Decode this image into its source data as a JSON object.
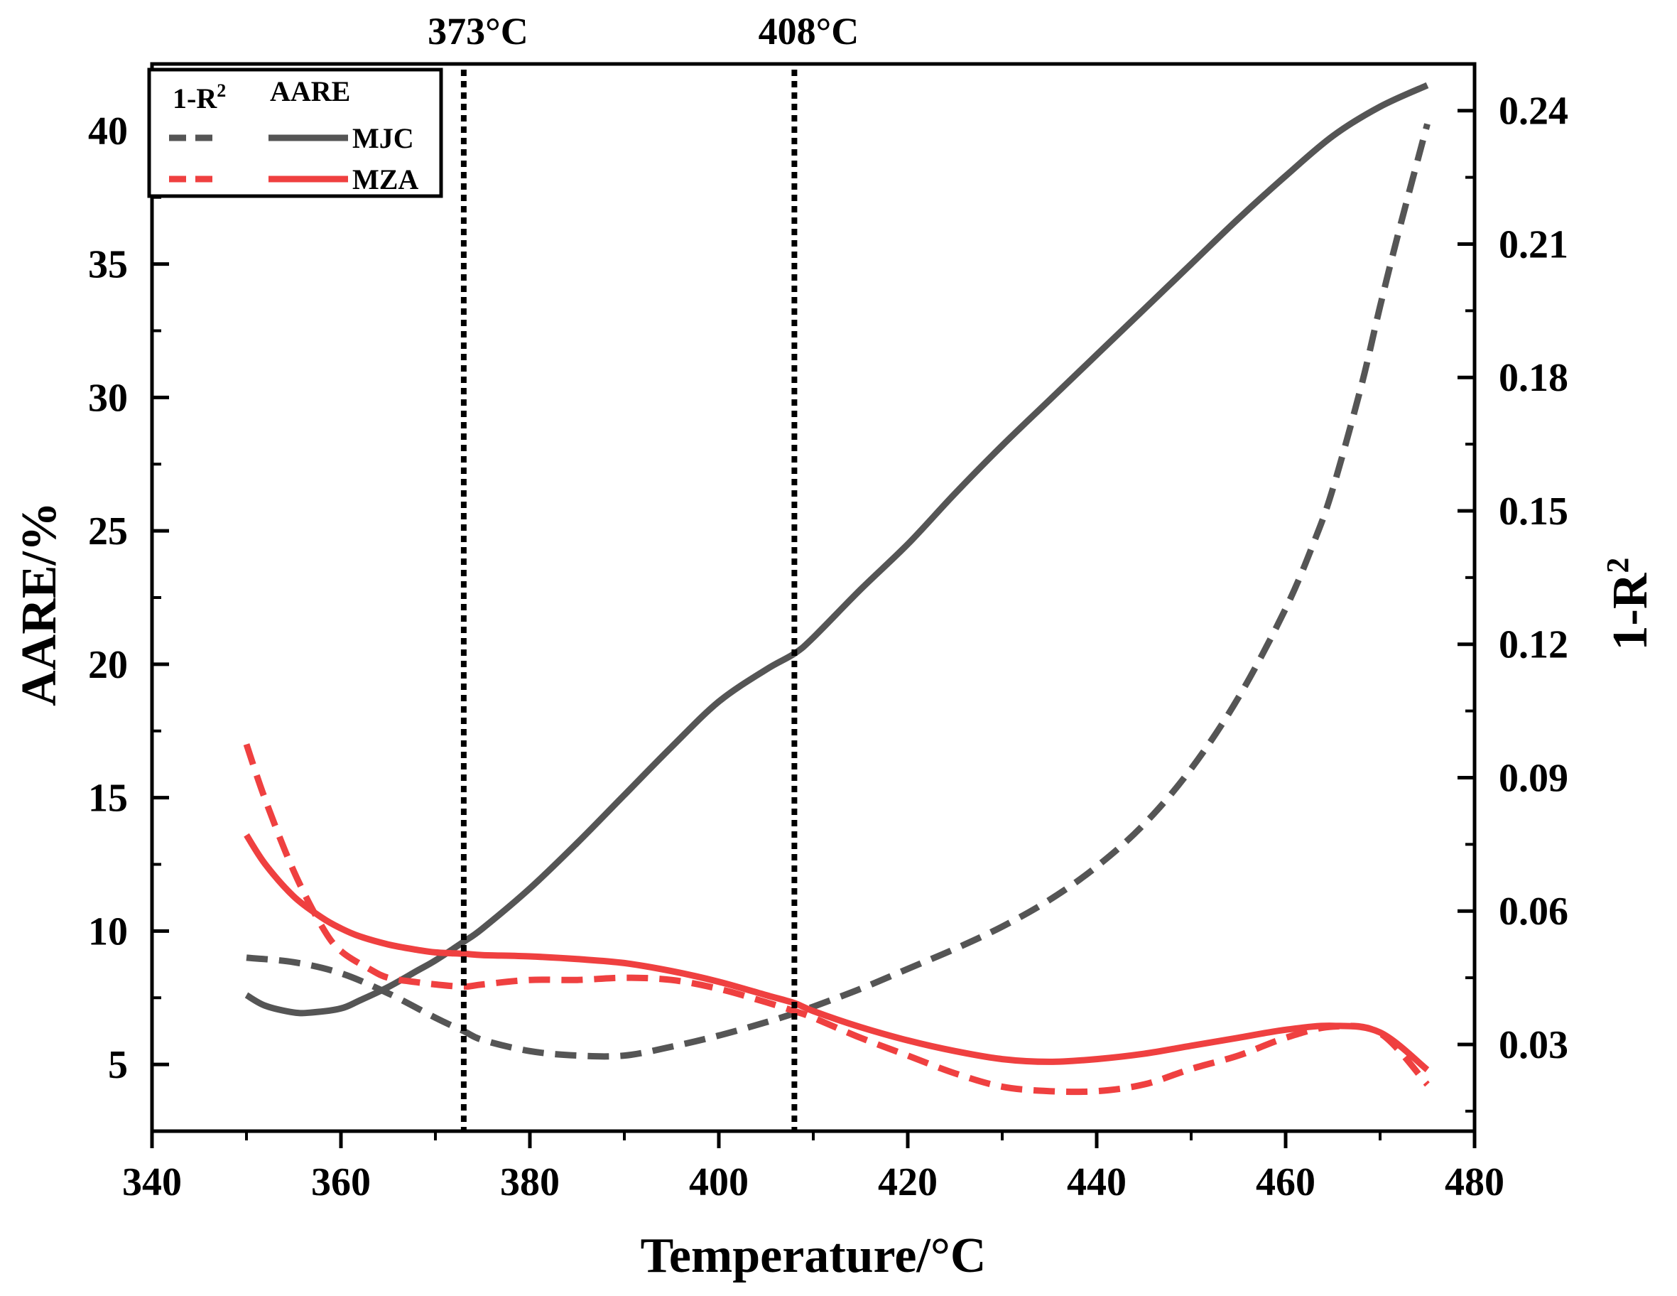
{
  "chart_data": {
    "type": "line",
    "title": "",
    "xlabel": "Temperature/°C",
    "ylabel": "AARE/%",
    "y2label": "1-R",
    "y2label_sup": "2",
    "xlim": [
      340,
      480
    ],
    "ylim": [
      2.5,
      42.5
    ],
    "y2lim": [
      0.0105,
      0.2505
    ],
    "xticks": [
      340,
      360,
      380,
      400,
      420,
      440,
      460,
      480
    ],
    "yticks": [
      5,
      10,
      15,
      20,
      25,
      30,
      35,
      40
    ],
    "y2ticks": [
      0.03,
      0.06,
      0.09,
      0.12,
      0.15,
      0.18,
      0.21,
      0.24
    ],
    "xtick_labels": [
      "340",
      "360",
      "380",
      "400",
      "420",
      "440",
      "460",
      "480"
    ],
    "ytick_labels": [
      "5",
      "10",
      "15",
      "20",
      "25",
      "30",
      "35",
      "40"
    ],
    "y2tick_labels": [
      "0.03",
      "0.06",
      "0.09",
      "0.12",
      "0.15",
      "0.18",
      "0.21",
      "0.24"
    ],
    "annotations": [
      {
        "x": 373,
        "label": "373°C",
        "style": "dotted-vertical"
      },
      {
        "x": 408,
        "label": "408°C",
        "style": "dotted-vertical"
      }
    ],
    "legend": {
      "placement": "top-left",
      "header_left": "1-R",
      "header_left_sup": "2",
      "header_right": "AARE",
      "entries": [
        "MJC",
        "MZA"
      ]
    },
    "series": [
      {
        "name": "MJC AARE",
        "legend": "MJC",
        "axis": "left",
        "style": "solid",
        "color": "#555555",
        "x": [
          350,
          352,
          355,
          357,
          360,
          362,
          365,
          368,
          370,
          373,
          375,
          380,
          385,
          390,
          395,
          400,
          405,
          408,
          410,
          415,
          420,
          425,
          430,
          435,
          440,
          445,
          450,
          455,
          460,
          465,
          470,
          475
        ],
        "y": [
          7.6,
          7.2,
          6.95,
          6.95,
          7.1,
          7.4,
          7.9,
          8.5,
          8.9,
          9.6,
          10.1,
          11.6,
          13.3,
          15.1,
          16.9,
          18.6,
          19.8,
          20.4,
          21.0,
          22.8,
          24.5,
          26.4,
          28.2,
          29.9,
          31.6,
          33.3,
          35.0,
          36.7,
          38.3,
          39.8,
          40.9,
          41.7
        ]
      },
      {
        "name": "MZA AARE",
        "legend": "MZA",
        "axis": "left",
        "style": "solid",
        "color": "#ef4040",
        "x": [
          350,
          352,
          355,
          358,
          360,
          362,
          365,
          368,
          370,
          373,
          375,
          380,
          385,
          390,
          395,
          400,
          405,
          408,
          410,
          415,
          420,
          425,
          430,
          435,
          440,
          445,
          450,
          455,
          460,
          465,
          470,
          475
        ],
        "y": [
          13.6,
          12.5,
          11.3,
          10.5,
          10.1,
          9.8,
          9.5,
          9.3,
          9.2,
          9.15,
          9.1,
          9.05,
          8.95,
          8.8,
          8.5,
          8.1,
          7.6,
          7.3,
          7.0,
          6.4,
          5.9,
          5.5,
          5.2,
          5.1,
          5.2,
          5.4,
          5.7,
          6.0,
          6.3,
          6.45,
          6.2,
          4.8
        ]
      },
      {
        "name": "MJC 1-R2",
        "legend": "MJC",
        "axis": "right",
        "style": "dashed",
        "color": "#555555",
        "x": [
          350,
          355,
          360,
          365,
          370,
          373,
          375,
          380,
          385,
          390,
          395,
          400,
          405,
          408,
          410,
          415,
          420,
          425,
          430,
          435,
          440,
          445,
          450,
          455,
          460,
          463,
          465,
          468,
          470,
          472,
          475
        ],
        "y": [
          0.0495,
          0.0485,
          0.046,
          0.0415,
          0.036,
          0.033,
          0.031,
          0.0285,
          0.0275,
          0.0275,
          0.0295,
          0.032,
          0.035,
          0.037,
          0.0385,
          0.0425,
          0.047,
          0.0515,
          0.0565,
          0.0625,
          0.07,
          0.0795,
          0.092,
          0.108,
          0.128,
          0.143,
          0.155,
          0.178,
          0.196,
          0.213,
          0.237
        ]
      },
      {
        "name": "MZA 1-R2",
        "legend": "MZA",
        "axis": "right",
        "style": "dashed",
        "color": "#ef4040",
        "x": [
          350,
          352,
          355,
          358,
          360,
          363,
          365,
          368,
          370,
          373,
          375,
          380,
          385,
          390,
          395,
          400,
          405,
          408,
          410,
          415,
          420,
          425,
          430,
          435,
          440,
          445,
          450,
          455,
          460,
          465,
          470,
          475
        ],
        "y": [
          0.0975,
          0.085,
          0.069,
          0.0565,
          0.051,
          0.047,
          0.045,
          0.044,
          0.0435,
          0.043,
          0.0435,
          0.0445,
          0.0445,
          0.045,
          0.0445,
          0.0425,
          0.0395,
          0.0375,
          0.036,
          0.0315,
          0.0275,
          0.0235,
          0.0205,
          0.0195,
          0.0195,
          0.021,
          0.0245,
          0.0275,
          0.0315,
          0.034,
          0.0325,
          0.021
        ]
      }
    ]
  }
}
